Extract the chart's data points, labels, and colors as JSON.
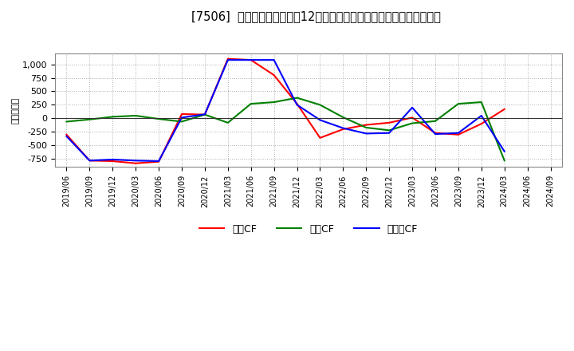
{
  "title": "[7506]  キャッシュフローの12か月移動合計の対前年同期増減額の推移",
  "ylabel": "（百万円）",
  "xlabel_dates": [
    "2019/06",
    "2019/09",
    "2019/12",
    "2020/03",
    "2020/06",
    "2020/09",
    "2020/12",
    "2021/03",
    "2021/06",
    "2021/09",
    "2021/12",
    "2022/03",
    "2022/06",
    "2022/09",
    "2022/12",
    "2023/03",
    "2023/06",
    "2023/09",
    "2023/12",
    "2024/03",
    "2024/06",
    "2024/09"
  ],
  "eigyo_cf": [
    -300,
    -780,
    -790,
    -830,
    -800,
    80,
    70,
    1100,
    1080,
    800,
    270,
    -360,
    -200,
    -120,
    -80,
    15,
    -270,
    -300,
    -100,
    170,
    null,
    null
  ],
  "toshi_cf": [
    -60,
    -20,
    30,
    50,
    -10,
    -60,
    70,
    -80,
    270,
    300,
    380,
    250,
    20,
    -170,
    -220,
    -90,
    -50,
    270,
    300,
    -780,
    null,
    null
  ],
  "free_cf": [
    -330,
    -780,
    -760,
    -780,
    -790,
    15,
    75,
    1080,
    1080,
    1080,
    250,
    -30,
    -180,
    -280,
    -270,
    200,
    -290,
    -270,
    50,
    -610,
    null,
    null
  ],
  "line_colors": {
    "eigyo": "#ff0000",
    "toshi": "#008000",
    "free": "#0000ff"
  },
  "ylim": [
    -900,
    1200
  ],
  "yticks": [
    -750,
    -500,
    -250,
    0,
    250,
    500,
    750,
    1000
  ],
  "background_color": "#ffffff",
  "plot_bg_color": "#ffffff",
  "grid_color": "#999999",
  "legend_labels": [
    "営業CF",
    "投資CF",
    "フリーCF"
  ]
}
